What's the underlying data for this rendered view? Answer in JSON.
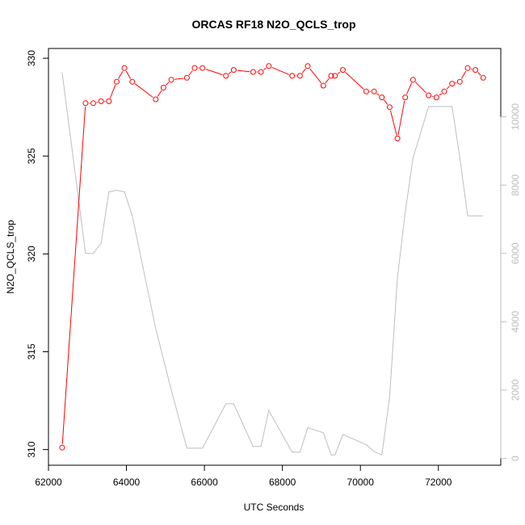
{
  "chart_data": {
    "type": "line",
    "title": "ORCAS RF18 N2O_QCLS_trop",
    "xlabel": "UTC Seconds",
    "ylabel": "N2O_QCLS_trop",
    "xlim": [
      62000,
      73600
    ],
    "ylim": [
      309.2,
      330.5
    ],
    "xticks": [
      62000,
      64000,
      66000,
      68000,
      70000,
      72000
    ],
    "yticks": [
      310,
      315,
      320,
      325,
      330
    ],
    "y2lim": [
      -200,
      12000
    ],
    "y2ticks": [
      0,
      2000,
      4000,
      6000,
      8000,
      10000
    ],
    "colors": {
      "primary": "#ff0000",
      "secondary": "#bebebe"
    },
    "series": [
      {
        "axis": "left",
        "marker": "circle",
        "x": [
          62350,
          62950,
          63150,
          63350,
          63550,
          63750,
          63950,
          64150,
          64750,
          64950,
          65150,
          65550,
          65750,
          65950,
          66550,
          66750,
          67250,
          67450,
          67650,
          68250,
          68450,
          68650,
          69050,
          69250,
          69350,
          69550,
          70150,
          70350,
          70550,
          70750,
          70950,
          71150,
          71350,
          71750,
          71950,
          72150,
          72350,
          72550,
          72750,
          72950,
          73150
        ],
        "y": [
          310.1,
          327.7,
          327.7,
          327.8,
          327.8,
          328.8,
          329.5,
          328.8,
          327.9,
          328.5,
          328.9,
          329.0,
          329.5,
          329.5,
          329.1,
          329.4,
          329.3,
          329.3,
          329.6,
          329.1,
          329.1,
          329.6,
          328.6,
          329.1,
          329.1,
          329.4,
          328.3,
          328.3,
          328.0,
          327.5,
          325.9,
          328.0,
          328.9,
          328.1,
          328.0,
          328.3,
          328.7,
          328.8,
          329.5,
          329.4,
          329.0
        ]
      },
      {
        "axis": "right",
        "x": [
          62350,
          62950,
          63150,
          63350,
          63550,
          63750,
          63950,
          64150,
          64750,
          64950,
          65150,
          65550,
          65750,
          65950,
          66550,
          66750,
          67250,
          67450,
          67650,
          68250,
          68450,
          68650,
          69050,
          69250,
          69350,
          69550,
          70150,
          70350,
          70550,
          70750,
          70950,
          71150,
          71350,
          71750,
          71950,
          72150,
          72350,
          72550,
          72750,
          72950,
          73150
        ],
        "y": [
          11300,
          6000,
          6000,
          6300,
          7800,
          7850,
          7800,
          7100,
          3800,
          2900,
          2000,
          300,
          300,
          300,
          1600,
          1600,
          350,
          350,
          1400,
          180,
          180,
          900,
          750,
          100,
          100,
          700,
          400,
          200,
          100,
          1800,
          5300,
          7200,
          8800,
          10300,
          10300,
          10300,
          10300,
          8800,
          7100,
          7100,
          7100
        ]
      }
    ]
  }
}
